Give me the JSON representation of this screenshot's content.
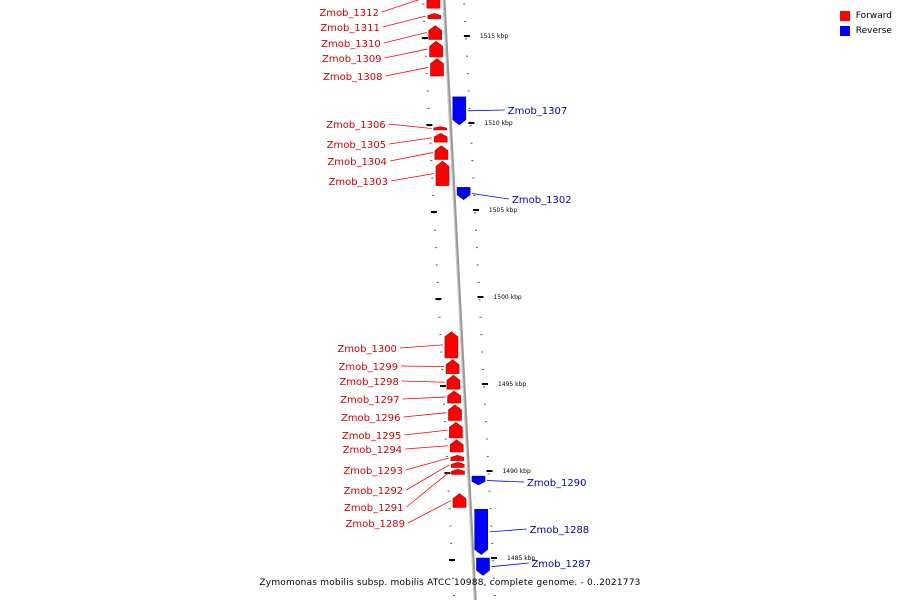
{
  "caption": "Zymomonas mobilis subsp. mobilis ATCC 10988, complete genome. - 0..2021773",
  "legend": [
    {
      "label": "Forward",
      "color": "#ff0000"
    },
    {
      "label": "Reverse",
      "color": "#0000ff"
    }
  ],
  "colors": {
    "forward": "#ff0000",
    "reverse": "#0000ff",
    "axis": "#999999"
  },
  "chart_data": {
    "type": "genome-map",
    "units": "kbp",
    "ticks": [
      {
        "kbp": 1515,
        "label": "1515 kbp"
      },
      {
        "kbp": 1510,
        "label": "1510 kbp"
      },
      {
        "kbp": 1505,
        "label": "1505 kbp"
      },
      {
        "kbp": 1500,
        "label": "1500 kbp"
      },
      {
        "kbp": 1495,
        "label": "1495 kbp"
      },
      {
        "kbp": 1490,
        "label": "1490 kbp"
      },
      {
        "kbp": 1485,
        "label": "1485 kbp"
      }
    ],
    "genes": [
      {
        "name": "Zmob_1312",
        "strand": "forward",
        "start": 1516.6,
        "end": 1517.8
      },
      {
        "name": "Zmob_1311",
        "strand": "forward",
        "start": 1516.0,
        "end": 1516.3
      },
      {
        "name": "Zmob_1310",
        "strand": "forward",
        "start": 1514.8,
        "end": 1515.6
      },
      {
        "name": "Zmob_1309",
        "strand": "forward",
        "start": 1513.8,
        "end": 1514.7
      },
      {
        "name": "Zmob_1308",
        "strand": "forward",
        "start": 1512.7,
        "end": 1513.7
      },
      {
        "name": "Zmob_1307",
        "strand": "reverse",
        "start": 1509.9,
        "end": 1511.5
      },
      {
        "name": "Zmob_1306",
        "strand": "forward",
        "start": 1509.6,
        "end": 1509.8
      },
      {
        "name": "Zmob_1305",
        "strand": "forward",
        "start": 1508.9,
        "end": 1509.4
      },
      {
        "name": "Zmob_1304",
        "strand": "forward",
        "start": 1507.9,
        "end": 1508.7
      },
      {
        "name": "Zmob_1303",
        "strand": "forward",
        "start": 1506.4,
        "end": 1507.8
      },
      {
        "name": "Zmob_1302",
        "strand": "reverse",
        "start": 1505.6,
        "end": 1506.3
      },
      {
        "name": "Zmob_1300",
        "strand": "forward",
        "start": 1496.5,
        "end": 1498.0
      },
      {
        "name": "Zmob_1299",
        "strand": "forward",
        "start": 1495.6,
        "end": 1496.4
      },
      {
        "name": "Zmob_1298",
        "strand": "forward",
        "start": 1494.7,
        "end": 1495.5
      },
      {
        "name": "Zmob_1297",
        "strand": "forward",
        "start": 1493.9,
        "end": 1494.6
      },
      {
        "name": "Zmob_1296",
        "strand": "forward",
        "start": 1492.9,
        "end": 1493.8
      },
      {
        "name": "Zmob_1295",
        "strand": "forward",
        "start": 1491.9,
        "end": 1492.8
      },
      {
        "name": "Zmob_1294",
        "strand": "forward",
        "start": 1491.1,
        "end": 1491.8
      },
      {
        "name": "Zmob_1293",
        "strand": "forward",
        "start": 1490.6,
        "end": 1490.9
      },
      {
        "name": "Zmob_1292",
        "strand": "forward",
        "start": 1490.2,
        "end": 1490.5
      },
      {
        "name": "Zmob_1291",
        "strand": "forward",
        "start": 1489.8,
        "end": 1490.1
      },
      {
        "name": "Zmob_1290",
        "strand": "reverse",
        "start": 1489.2,
        "end": 1489.7
      },
      {
        "name": "Zmob_1289",
        "strand": "forward",
        "start": 1487.9,
        "end": 1488.7
      },
      {
        "name": "Zmob_1288",
        "strand": "reverse",
        "start": 1485.2,
        "end": 1487.8
      },
      {
        "name": "Zmob_1287",
        "strand": "reverse",
        "start": 1484.0,
        "end": 1485.0
      }
    ]
  }
}
